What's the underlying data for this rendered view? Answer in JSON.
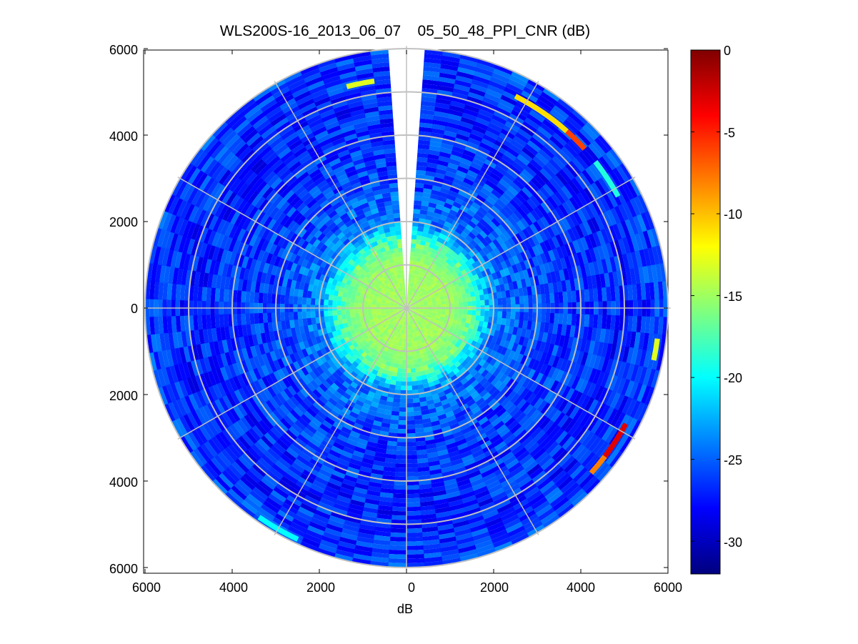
{
  "figure": {
    "title": "WLS200S-16_2013_06_07__05_50_48_PPI_CNR (dB)",
    "xlabel": "dB",
    "x_ticks": [
      "6000",
      "4000",
      "2000",
      "0",
      "2000",
      "4000",
      "6000"
    ],
    "y_ticks": [
      "6000",
      "4000",
      "2000",
      "0",
      "2000",
      "4000",
      "6000"
    ],
    "colorbar_ticks": [
      "0",
      "-5",
      "-10",
      "-15",
      "-20",
      "-25",
      "-30"
    ]
  },
  "chart_data": {
    "type": "heatmap",
    "subtype": "polar PPI scan",
    "title": "WLS200S-16_2013_06_07__05_50_48_PPI_CNR (dB)",
    "xlabel": "dB",
    "ylabel": "",
    "xlim": [
      -6000,
      6000
    ],
    "ylim": [
      -6000,
      6000
    ],
    "max_range": 6000,
    "range_rings": [
      1000,
      2000,
      3000,
      4000,
      5000,
      6000
    ],
    "azimuth_spokes_deg": [
      0,
      30,
      60,
      90,
      120,
      150,
      180,
      210,
      240,
      270,
      300,
      330
    ],
    "blank_sector_deg": [
      -4,
      4
    ],
    "colorbar": {
      "colormap": "jet",
      "clim": [
        -32,
        0
      ],
      "ticks": [
        0,
        -5,
        -10,
        -15,
        -20,
        -25,
        -30
      ]
    },
    "radial_profile": [
      {
        "range": 0,
        "cnr": -15
      },
      {
        "range": 1000,
        "cnr": -15
      },
      {
        "range": 1500,
        "cnr": -17
      },
      {
        "range": 2000,
        "cnr": -24
      },
      {
        "range": 3000,
        "cnr": -26
      },
      {
        "range": 5000,
        "cnr": -27
      },
      {
        "range": 6000,
        "cnr": -26
      }
    ],
    "features": [
      {
        "description": "edge arc",
        "az_from": 27,
        "az_to": 42,
        "range": 5500,
        "cnr": -11
      },
      {
        "description": "edge arc",
        "az_from": 42,
        "az_to": 48,
        "range": 5500,
        "cnr": -6
      },
      {
        "description": "edge arc",
        "az_from": 52,
        "az_to": 62,
        "range": 5500,
        "cnr": -19
      },
      {
        "description": "edge arc",
        "az_from": 97,
        "az_to": 102,
        "range": 5800,
        "cnr": -13
      },
      {
        "description": "edge arc",
        "az_from": 118,
        "az_to": 127,
        "range": 5700,
        "cnr": -3
      },
      {
        "description": "edge arc",
        "az_from": 127,
        "az_to": 132,
        "range": 5700,
        "cnr": -8
      },
      {
        "description": "edge arc",
        "az_from": 205,
        "az_to": 215,
        "range": 5900,
        "cnr": -20
      },
      {
        "description": "edge arc",
        "az_from": 345,
        "az_to": 352,
        "range": 5300,
        "cnr": -13
      }
    ]
  }
}
